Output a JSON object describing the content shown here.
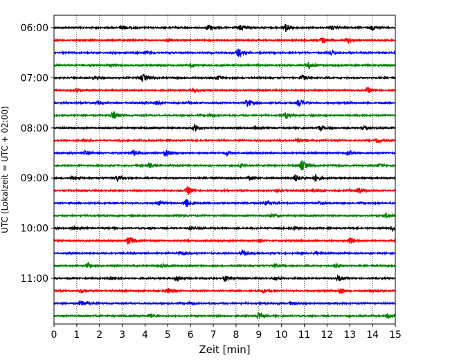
{
  "chart_data": {
    "type": "line",
    "title": "",
    "xlabel": "Zeit  [min]",
    "ylabel": "UTC (Lokalzeit = UTC + 02:00)",
    "xlim": [
      0,
      15
    ],
    "x_ticks": [
      "0",
      "1",
      "2",
      "3",
      "4",
      "5",
      "6",
      "7",
      "8",
      "9",
      "10",
      "11",
      "12",
      "13",
      "14",
      "15"
    ],
    "y_ticks": [
      "06:00",
      "07:00",
      "08:00",
      "09:00",
      "10:00",
      "11:00"
    ],
    "grid": "vertical dotted lines at each minute",
    "legend": "none",
    "trace_interval_minutes": 15,
    "trace_colors_cycle": [
      "#000000",
      "#ff0000",
      "#0000ff",
      "#008000"
    ],
    "traces": [
      {
        "start": "06:00",
        "color": "#000000",
        "events": [
          {
            "t": 3.0,
            "a": 0.5
          },
          {
            "t": 6.8,
            "a": 0.6
          },
          {
            "t": 8.2,
            "a": 0.5
          },
          {
            "t": 10.2,
            "a": 0.8
          },
          {
            "t": 12.2,
            "a": 0.4
          },
          {
            "t": 14.0,
            "a": 0.4
          }
        ]
      },
      {
        "start": "06:15",
        "color": "#ff0000",
        "events": [
          {
            "t": 11.8,
            "a": 0.6
          },
          {
            "t": 12.9,
            "a": 0.6
          },
          {
            "t": 5.0,
            "a": 0.3
          }
        ]
      },
      {
        "start": "06:30",
        "color": "#0000ff",
        "events": [
          {
            "t": 8.1,
            "a": 0.9
          },
          {
            "t": 12.2,
            "a": 0.4
          },
          {
            "t": 4.0,
            "a": 0.3
          }
        ]
      },
      {
        "start": "06:45",
        "color": "#008000",
        "events": [
          {
            "t": 11.2,
            "a": 0.6
          },
          {
            "t": 2.5,
            "a": 0.3
          },
          {
            "t": 6.0,
            "a": 0.3
          }
        ]
      },
      {
        "start": "07:00",
        "color": "#000000",
        "events": [
          {
            "t": 3.9,
            "a": 0.7
          },
          {
            "t": 10.9,
            "a": 0.6
          },
          {
            "t": 7.2,
            "a": 0.4
          },
          {
            "t": 1.8,
            "a": 0.3
          }
        ]
      },
      {
        "start": "07:15",
        "color": "#ff0000",
        "events": [
          {
            "t": 1.0,
            "a": 0.4
          },
          {
            "t": 13.8,
            "a": 0.5
          },
          {
            "t": 6.1,
            "a": 0.3
          }
        ]
      },
      {
        "start": "07:30",
        "color": "#0000ff",
        "events": [
          {
            "t": 8.5,
            "a": 0.8
          },
          {
            "t": 10.8,
            "a": 0.7
          },
          {
            "t": 4.5,
            "a": 0.4
          },
          {
            "t": 1.9,
            "a": 0.3
          }
        ]
      },
      {
        "start": "07:45",
        "color": "#008000",
        "events": [
          {
            "t": 2.6,
            "a": 0.9
          },
          {
            "t": 10.2,
            "a": 0.6
          },
          {
            "t": 6.9,
            "a": 0.3
          }
        ]
      },
      {
        "start": "08:00",
        "color": "#000000",
        "events": [
          {
            "t": 6.2,
            "a": 0.6
          },
          {
            "t": 8.8,
            "a": 0.4
          },
          {
            "t": 13.6,
            "a": 0.5
          },
          {
            "t": 11.7,
            "a": 0.4
          }
        ]
      },
      {
        "start": "08:15",
        "color": "#ff0000",
        "events": [
          {
            "t": 1.3,
            "a": 0.3
          },
          {
            "t": 10.7,
            "a": 0.3
          },
          {
            "t": 14.2,
            "a": 0.4
          }
        ]
      },
      {
        "start": "08:30",
        "color": "#0000ff",
        "events": [
          {
            "t": 3.5,
            "a": 0.6
          },
          {
            "t": 4.9,
            "a": 0.8
          },
          {
            "t": 1.4,
            "a": 0.4
          },
          {
            "t": 7.6,
            "a": 0.4
          },
          {
            "t": 12.9,
            "a": 0.4
          }
        ]
      },
      {
        "start": "08:45",
        "color": "#008000",
        "events": [
          {
            "t": 10.9,
            "a": 1.0
          },
          {
            "t": 4.2,
            "a": 0.6
          },
          {
            "t": 8.2,
            "a": 0.3
          },
          {
            "t": 14.3,
            "a": 0.3
          }
        ]
      },
      {
        "start": "09:00",
        "color": "#000000",
        "events": [
          {
            "t": 10.6,
            "a": 0.7
          },
          {
            "t": 11.5,
            "a": 0.7
          },
          {
            "t": 2.8,
            "a": 0.5
          },
          {
            "t": 8.6,
            "a": 0.4
          },
          {
            "t": 0.8,
            "a": 0.3
          }
        ]
      },
      {
        "start": "09:15",
        "color": "#ff0000",
        "events": [
          {
            "t": 5.9,
            "a": 0.8
          },
          {
            "t": 13.4,
            "a": 0.6
          },
          {
            "t": 11.4,
            "a": 0.3
          },
          {
            "t": 9.8,
            "a": 0.3
          }
        ]
      },
      {
        "start": "09:30",
        "color": "#0000ff",
        "events": [
          {
            "t": 5.8,
            "a": 1.0
          },
          {
            "t": 9.3,
            "a": 0.4
          },
          {
            "t": 11.7,
            "a": 0.3
          },
          {
            "t": 4.6,
            "a": 0.4
          }
        ]
      },
      {
        "start": "09:45",
        "color": "#008000",
        "events": [
          {
            "t": 9.6,
            "a": 0.4
          },
          {
            "t": 14.6,
            "a": 0.5
          },
          {
            "t": 5.5,
            "a": 0.3
          }
        ]
      },
      {
        "start": "10:00",
        "color": "#000000",
        "events": [
          {
            "t": 0.8,
            "a": 0.5
          },
          {
            "t": 14.9,
            "a": 0.6
          },
          {
            "t": 6.0,
            "a": 0.3
          },
          {
            "t": 10.5,
            "a": 0.3
          }
        ]
      },
      {
        "start": "10:15",
        "color": "#ff0000",
        "events": [
          {
            "t": 3.3,
            "a": 0.9
          },
          {
            "t": 13.0,
            "a": 0.7
          },
          {
            "t": 9.0,
            "a": 0.3
          }
        ]
      },
      {
        "start": "10:30",
        "color": "#0000ff",
        "events": [
          {
            "t": 8.3,
            "a": 0.5
          },
          {
            "t": 5.6,
            "a": 0.4
          },
          {
            "t": 11.5,
            "a": 0.3
          }
        ]
      },
      {
        "start": "10:45",
        "color": "#008000",
        "events": [
          {
            "t": 1.5,
            "a": 0.5
          },
          {
            "t": 9.7,
            "a": 0.4
          },
          {
            "t": 4.8,
            "a": 0.3
          },
          {
            "t": 12.4,
            "a": 0.3
          }
        ]
      },
      {
        "start": "11:00",
        "color": "#000000",
        "events": [
          {
            "t": 5.4,
            "a": 0.6
          },
          {
            "t": 7.5,
            "a": 0.5
          },
          {
            "t": 12.5,
            "a": 0.5
          },
          {
            "t": 2.5,
            "a": 0.3
          },
          {
            "t": 9.7,
            "a": 0.3
          }
        ]
      },
      {
        "start": "11:15",
        "color": "#ff0000",
        "events": [
          {
            "t": 1.2,
            "a": 0.4
          },
          {
            "t": 5.0,
            "a": 0.5
          },
          {
            "t": 12.6,
            "a": 0.6
          },
          {
            "t": 9.2,
            "a": 0.4
          },
          {
            "t": 14.0,
            "a": 0.3
          }
        ]
      },
      {
        "start": "11:30",
        "color": "#0000ff",
        "events": [
          {
            "t": 1.2,
            "a": 0.6
          },
          {
            "t": 6.0,
            "a": 0.3
          },
          {
            "t": 10.4,
            "a": 0.3
          }
        ]
      },
      {
        "start": "11:45",
        "color": "#008000",
        "events": [
          {
            "t": 9.0,
            "a": 0.6
          },
          {
            "t": 14.7,
            "a": 0.5
          },
          {
            "t": 4.2,
            "a": 0.3
          }
        ]
      }
    ]
  }
}
